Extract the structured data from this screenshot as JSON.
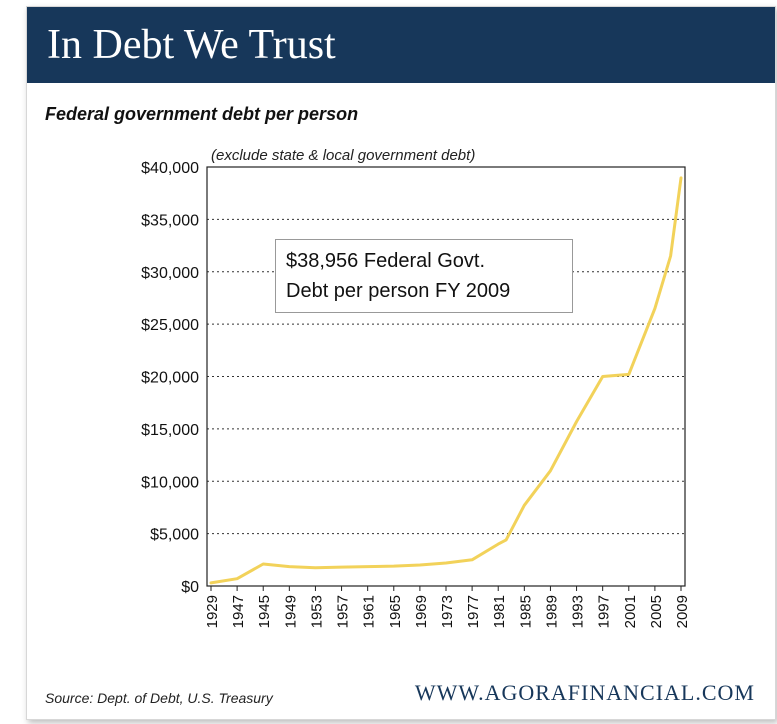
{
  "header": {
    "title": "In Debt We Trust"
  },
  "chart_data": {
    "type": "line",
    "title": "Federal government debt per person",
    "subtitle": "(exclude state & local government debt)",
    "annotation_line1": "$38,956 Federal Govt.",
    "annotation_line2": "Debt per person FY 2009",
    "ylim": [
      0,
      40000
    ],
    "yticks": [
      "$0",
      "$5,000",
      "$10,000",
      "$15,000",
      "$20,000",
      "$25,000",
      "$30,000",
      "$35,000",
      "$40,000"
    ],
    "ytick_values": [
      0,
      5000,
      10000,
      15000,
      20000,
      25000,
      30000,
      35000,
      40000
    ],
    "xticks": [
      "1929",
      "1947",
      "1945",
      "1949",
      "1953",
      "1957",
      "1961",
      "1965",
      "1969",
      "1973",
      "1977",
      "1981",
      "1985",
      "1989",
      "1993",
      "1997",
      "2001",
      "2005",
      "2009"
    ],
    "grid": "horizontal dotted",
    "line_color": "#f2d25a",
    "series": [
      {
        "values": [
          {
            "tick": 0,
            "y": 300
          },
          {
            "tick": 1,
            "y": 700
          },
          {
            "tick": 2,
            "y": 2100
          },
          {
            "tick": 3,
            "y": 1850
          },
          {
            "tick": 4,
            "y": 1750
          },
          {
            "tick": 5,
            "y": 1800
          },
          {
            "tick": 6,
            "y": 1850
          },
          {
            "tick": 7,
            "y": 1900
          },
          {
            "tick": 8,
            "y": 2000
          },
          {
            "tick": 9,
            "y": 2200
          },
          {
            "tick": 10,
            "y": 2500
          },
          {
            "tick": 11,
            "y": 4000
          },
          {
            "tick": 11.3,
            "y": 4400
          },
          {
            "tick": 12,
            "y": 7700
          },
          {
            "tick": 13,
            "y": 11000
          },
          {
            "tick": 14,
            "y": 15700
          },
          {
            "tick": 15,
            "y": 20000
          },
          {
            "tick": 16,
            "y": 20200
          },
          {
            "tick": 17,
            "y": 26500
          },
          {
            "tick": 17.6,
            "y": 31500
          },
          {
            "tick": 18,
            "y": 38956
          }
        ]
      }
    ]
  },
  "footer": {
    "source": "Source: Dept. of Debt, U.S. Treasury",
    "site": "WWW.AGORAFINANCIAL.COM"
  }
}
